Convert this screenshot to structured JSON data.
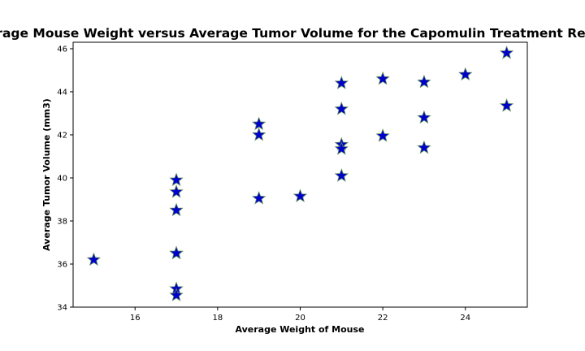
{
  "chart_data": {
    "type": "scatter",
    "title": "Average Mouse Weight versus Average Tumor Volume for the Capomulin Treatment Regimen",
    "xlabel": "Average Weight of Mouse",
    "ylabel": "Average Tumor Volume (mm3)",
    "xlim": [
      14.5,
      25.5
    ],
    "ylim": [
      34,
      46.3
    ],
    "xticks": [
      16,
      18,
      20,
      22,
      24
    ],
    "yticks": [
      34,
      36,
      38,
      40,
      42,
      44,
      46
    ],
    "xtick_labels": [
      "16",
      "18",
      "20",
      "22",
      "24"
    ],
    "ytick_labels": [
      "34",
      "36",
      "38",
      "40",
      "42",
      "44",
      "46"
    ],
    "grid": false,
    "marker": "star",
    "marker_color": "#0000cc",
    "marker_edge_color": "#5a8a5a",
    "series": [
      {
        "x": [
          15,
          17,
          17,
          17,
          17,
          17,
          17,
          17,
          19,
          19,
          19,
          20,
          21,
          21,
          21,
          21,
          21,
          22,
          22,
          23,
          23,
          23,
          24,
          25,
          25
        ],
        "y": [
          36.2,
          39.9,
          39.35,
          38.5,
          36.5,
          34.85,
          34.55,
          36.5,
          42.5,
          42.0,
          39.05,
          39.15,
          44.4,
          43.2,
          41.55,
          41.35,
          40.1,
          44.6,
          41.95,
          44.45,
          42.8,
          41.4,
          44.8,
          45.8,
          43.35
        ]
      }
    ]
  }
}
